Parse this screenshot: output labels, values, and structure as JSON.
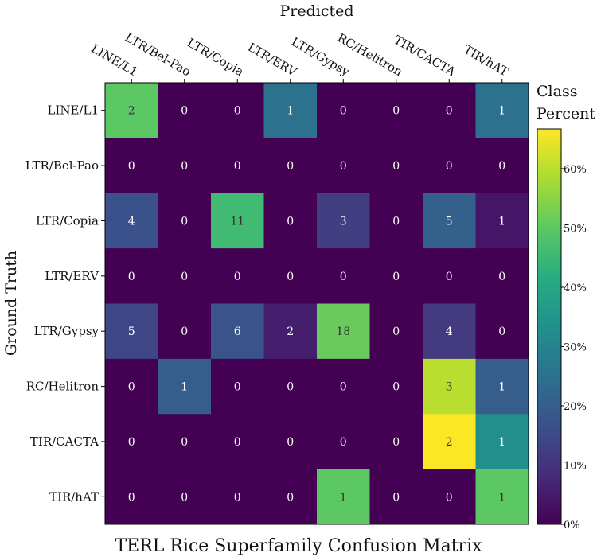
{
  "chart_data": {
    "type": "heatmap",
    "title": "TERL Rice Superfamily Confusion Matrix",
    "xlabel": "Predicted",
    "ylabel": "Ground Truth",
    "x_categories": [
      "LINE/L1",
      "LTR/Bel-Pao",
      "LTR/Copia",
      "LTR/ERV",
      "LTR/Gypsy",
      "RC/Helitron",
      "TIR/CACTA",
      "TIR/hAT"
    ],
    "y_categories": [
      "LINE/L1",
      "LTR/Bel-Pao",
      "LTR/Copia",
      "LTR/ERV",
      "LTR/Gypsy",
      "RC/Helitron",
      "TIR/CACTA",
      "TIR/hAT"
    ],
    "counts": [
      [
        2,
        0,
        0,
        1,
        0,
        0,
        0,
        1
      ],
      [
        0,
        0,
        0,
        0,
        0,
        0,
        0,
        0
      ],
      [
        4,
        0,
        11,
        0,
        3,
        0,
        5,
        1
      ],
      [
        0,
        0,
        0,
        0,
        0,
        0,
        0,
        0
      ],
      [
        5,
        0,
        6,
        2,
        18,
        0,
        4,
        0
      ],
      [
        0,
        1,
        0,
        0,
        0,
        0,
        3,
        1
      ],
      [
        0,
        0,
        0,
        0,
        0,
        0,
        2,
        1
      ],
      [
        0,
        0,
        0,
        0,
        1,
        0,
        0,
        1
      ]
    ],
    "colorbar": {
      "label_lines": [
        "Class",
        "Percent"
      ],
      "ticks": [
        "0%",
        "10%",
        "20%",
        "30%",
        "40%",
        "50%",
        "60%"
      ],
      "tick_values": [
        0,
        10,
        20,
        30,
        40,
        50,
        60
      ],
      "range": [
        0,
        66.7
      ],
      "colormap": "viridis"
    }
  }
}
